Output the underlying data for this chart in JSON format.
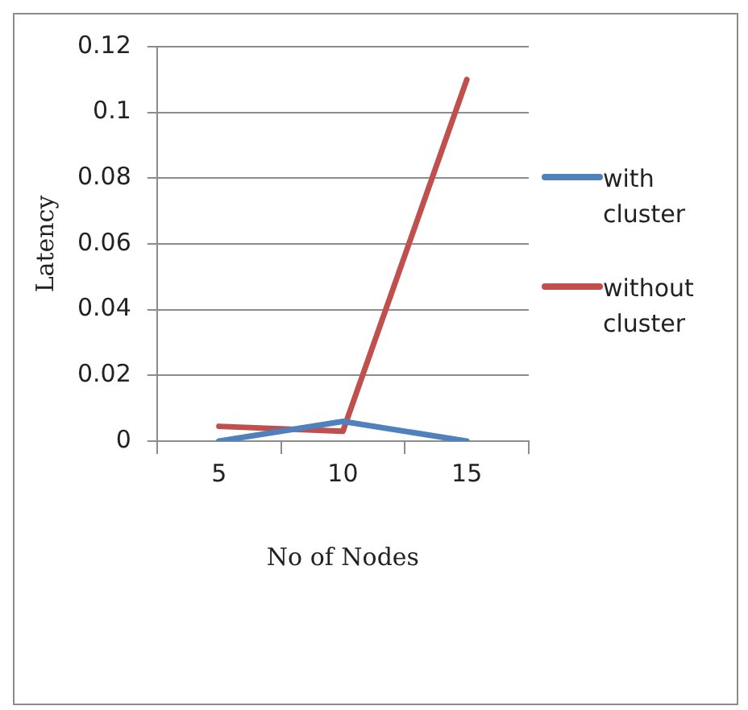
{
  "chart_data": {
    "type": "line",
    "xlabel": "No of Nodes",
    "ylabel": "Latency",
    "categories": [
      "5",
      "10",
      "15"
    ],
    "series": [
      {
        "name": "with cluster",
        "color": "#4f81bd",
        "values": [
          0,
          0.006,
          0
        ]
      },
      {
        "name": "without cluster",
        "color": "#c0504d",
        "values": [
          0.0045,
          0.003,
          0.11
        ]
      }
    ],
    "ylim": [
      0,
      0.12
    ],
    "yticks": [
      0,
      0.02,
      0.04,
      0.06,
      0.08,
      0.1,
      0.12
    ],
    "grid": "y",
    "legend": "right",
    "marker": "none",
    "line_style": "solid"
  }
}
